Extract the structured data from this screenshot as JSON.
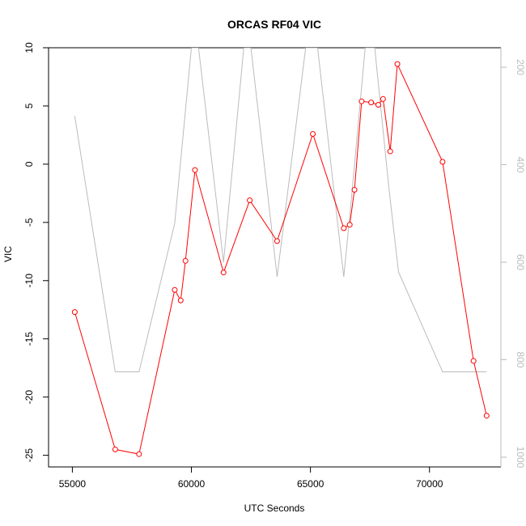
{
  "chart_data": {
    "type": "line",
    "title": "ORCAS RF04 VIC",
    "xlabel": "UTC Seconds",
    "ylabel": "VIC",
    "xlim": [
      54000,
      73000
    ],
    "ylim": [
      -26,
      10
    ],
    "xticks": [
      55000,
      60000,
      65000,
      70000
    ],
    "yticks": [
      -25,
      -20,
      -15,
      -10,
      -5,
      0,
      5,
      10
    ],
    "y2lim": [
      1020,
      160
    ],
    "y2ticks": [
      200,
      400,
      600,
      800,
      1000
    ],
    "grid": false,
    "series": [
      {
        "role": "primary",
        "color": "#ff0000",
        "marker": "open-circle",
        "x": [
          55100,
          56800,
          57800,
          59300,
          59550,
          59750,
          60150,
          61350,
          62450,
          63600,
          65100,
          66400,
          66650,
          66850,
          67150,
          67550,
          67850,
          68050,
          68350,
          68650,
          70550,
          71850,
          72400
        ],
        "y": [
          -12.7,
          -24.5,
          -24.9,
          -10.8,
          -11.7,
          -8.3,
          -0.5,
          -9.3,
          -3.1,
          -6.6,
          2.6,
          -5.5,
          -5.2,
          -2.2,
          5.4,
          5.3,
          5.1,
          5.6,
          1.1,
          8.6,
          0.2,
          -16.9,
          -21.6
        ]
      },
      {
        "role": "secondary",
        "axis": "right",
        "color": "#bbbbbb",
        "x": [
          55100,
          56800,
          57800,
          59300,
          60000,
          60300,
          61350,
          62200,
          62500,
          63600,
          64800,
          65300,
          66400,
          66700,
          67300,
          67700,
          68300,
          68700,
          70550,
          72400
        ],
        "y": [
          300,
          825,
          825,
          520,
          160,
          160,
          600,
          160,
          160,
          630,
          160,
          160,
          630,
          480,
          160,
          160,
          450,
          620,
          825,
          825
        ]
      }
    ]
  }
}
